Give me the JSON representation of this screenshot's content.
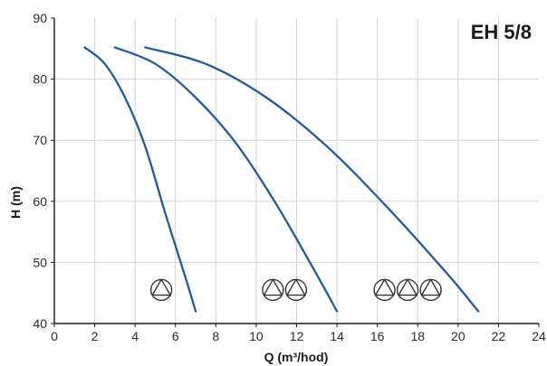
{
  "chart_data": {
    "type": "line",
    "title": "EH 5/8",
    "xlabel": "Q (m³/hod)",
    "ylabel": "H (m)",
    "xlim": [
      0,
      24
    ],
    "ylim": [
      40,
      90
    ],
    "x_ticks": [
      "0",
      "2",
      "4",
      "6",
      "8",
      "10",
      "12",
      "14",
      "16",
      "18",
      "20",
      "22",
      "24"
    ],
    "y_ticks": [
      "40",
      "50",
      "60",
      "70",
      "80",
      "90"
    ],
    "grid": true,
    "series": [
      {
        "pump_count": 1,
        "x": [
          1.5,
          2.5,
          3.5,
          4.5,
          5.5,
          6.5,
          7.0
        ],
        "y": [
          85.2,
          82.5,
          77.0,
          69.0,
          58.0,
          47.5,
          42.0
        ]
      },
      {
        "pump_count": 2,
        "x": [
          3.0,
          5.0,
          7.0,
          9.0,
          11.0,
          13.0,
          14.0
        ],
        "y": [
          85.2,
          82.5,
          77.0,
          69.5,
          59.5,
          48.0,
          42.0
        ]
      },
      {
        "pump_count": 3,
        "x": [
          4.5,
          7.5,
          10.5,
          13.5,
          16.5,
          19.5,
          21.0
        ],
        "y": [
          85.2,
          82.5,
          77.0,
          69.0,
          59.0,
          48.0,
          42.0
        ]
      }
    ],
    "pump_icon_groups": [
      {
        "count": 1,
        "x": 5.3,
        "y": 45.5
      },
      {
        "count": 2,
        "x": 11.4,
        "y": 45.5
      },
      {
        "count": 3,
        "x": 17.5,
        "y": 45.5
      }
    ]
  },
  "colors": {
    "curve": "#1e5aa6",
    "grid": "#d4d4d4",
    "axis": "#1a1a1a",
    "icon": "#333333"
  },
  "icons": {
    "pump": "pump-triangle-icon"
  }
}
